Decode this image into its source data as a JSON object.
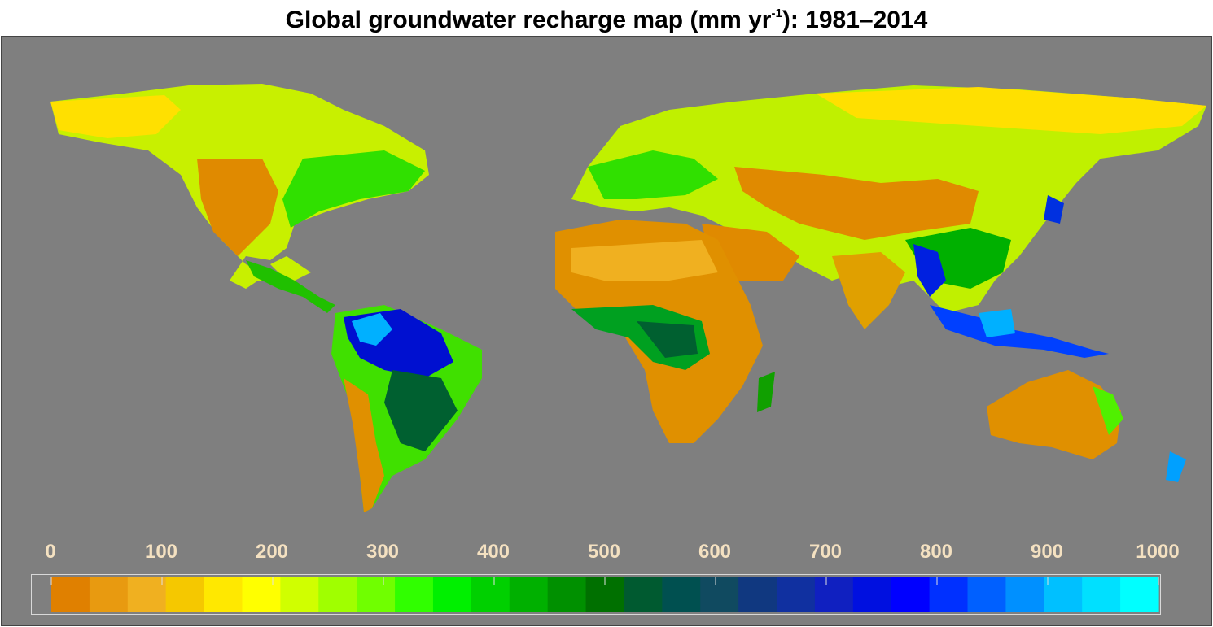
{
  "title": {
    "main": "Global groundwater recharge map (mm yr",
    "superscript": "-1",
    "suffix": "): 1981–2014"
  },
  "colors": {
    "ocean": "#7f7f7f",
    "legend_tick_label": "#f4e1c1",
    "scale": [
      "#e08000",
      "#e89a10",
      "#f0b020",
      "#f5c800",
      "#ffe800",
      "#ffff00",
      "#d0ff00",
      "#a0ff00",
      "#70ff00",
      "#30ff00",
      "#00f000",
      "#00d000",
      "#00b000",
      "#009000",
      "#007000",
      "#005a30",
      "#005050",
      "#104a60",
      "#103880",
      "#1030a0",
      "#1020c0",
      "#0010e0",
      "#0000ff",
      "#0030ff",
      "#0060ff",
      "#0090ff",
      "#00c0ff",
      "#00e0ff",
      "#00ffff"
    ]
  },
  "legend": {
    "ticks": [
      "0",
      "100",
      "200",
      "300",
      "400",
      "500",
      "600",
      "700",
      "800",
      "900",
      "1000"
    ],
    "min": 0,
    "max": 1000
  }
}
